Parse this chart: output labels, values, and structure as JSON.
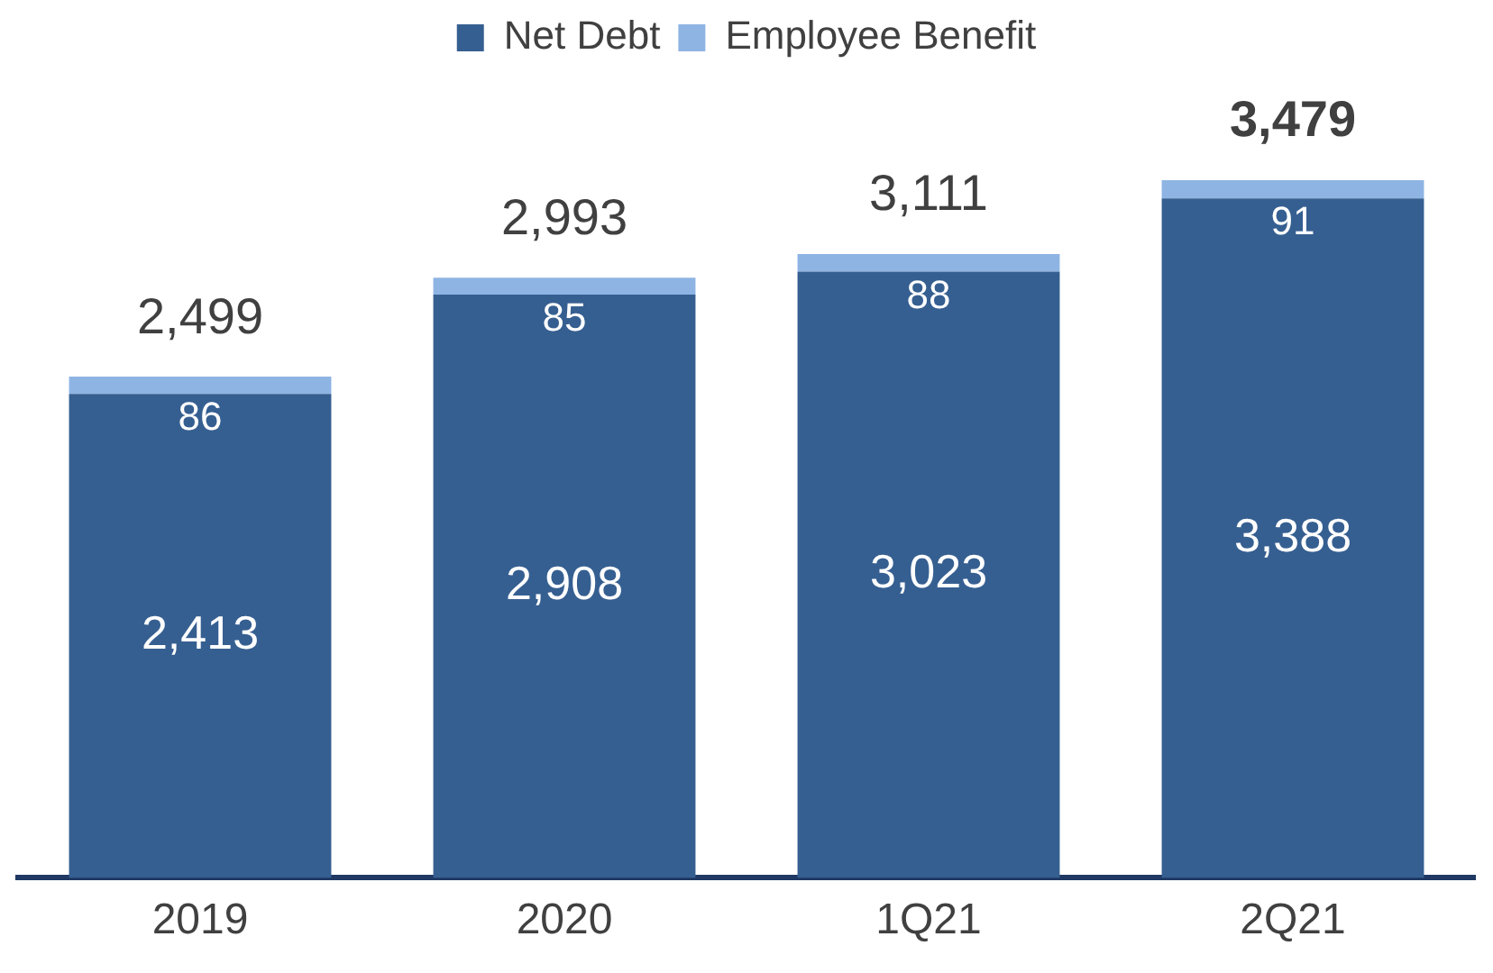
{
  "chart_data": {
    "type": "bar",
    "stacked": true,
    "categories": [
      "2019",
      "2020",
      "1Q21",
      "2Q21"
    ],
    "series": [
      {
        "name": "Net Debt",
        "color": "#365f91",
        "values": [
          2413,
          2908,
          3023,
          3388
        ],
        "value_labels": [
          "2,413",
          "2,908",
          "3,023",
          "3,388"
        ]
      },
      {
        "name": "Employee Benefit",
        "color": "#8eb4e3",
        "values": [
          86,
          85,
          88,
          91
        ],
        "value_labels": [
          "86",
          "85",
          "88",
          "91"
        ]
      }
    ],
    "totals": [
      "2,499",
      "2,993",
      "3,111",
      "3,479"
    ],
    "legend": "top",
    "grid": false
  }
}
